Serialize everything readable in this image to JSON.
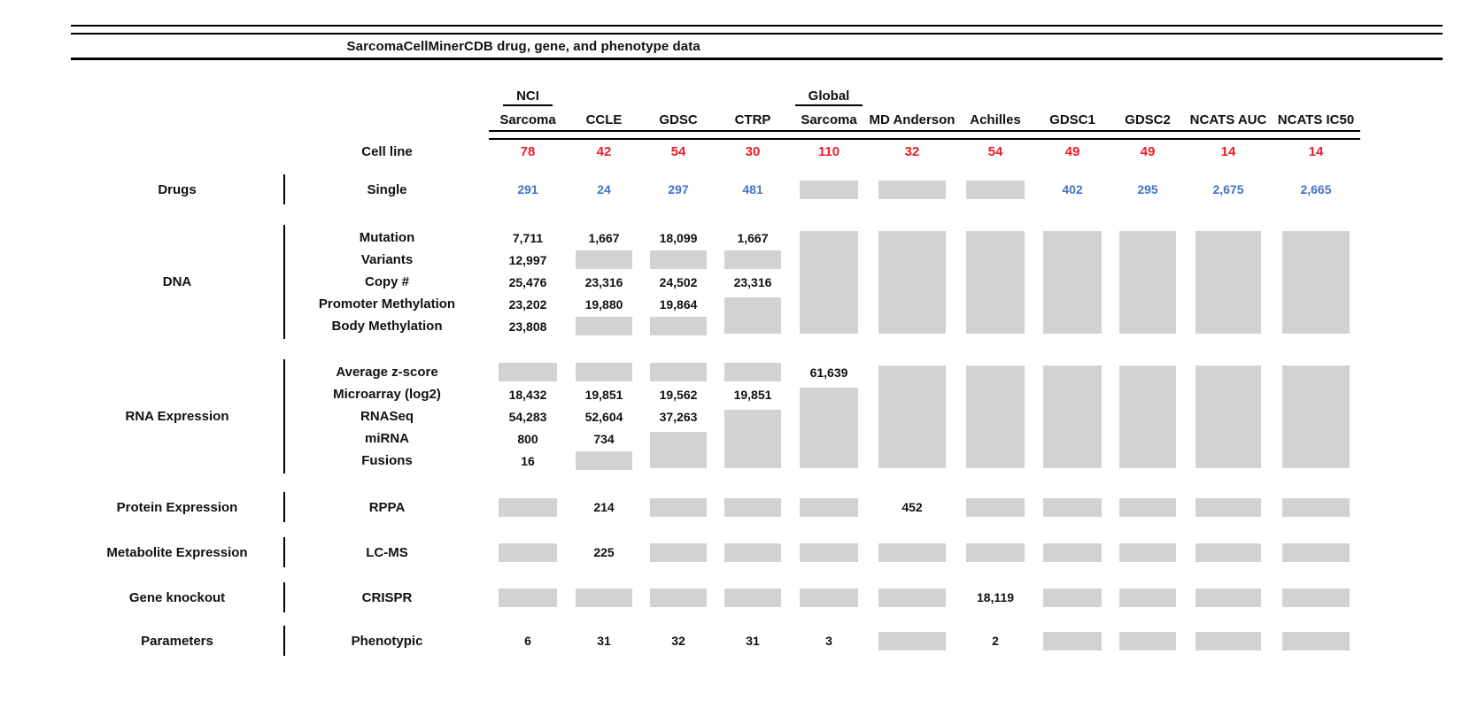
{
  "title": "SarcomaCellMinerCDB drug, gene, and phenotype data",
  "colors": {
    "cell_line_red": "#ee1c25",
    "drug_blue": "#4472c4",
    "empty_box_gray": "#d2d2d2",
    "text_black": "#111111"
  },
  "columns": [
    {
      "id": "nci-sarcoma",
      "label_top": "NCI",
      "label": "Sarcoma"
    },
    {
      "id": "ccle",
      "label_top": "",
      "label": "CCLE"
    },
    {
      "id": "gdsc",
      "label_top": "",
      "label": "GDSC"
    },
    {
      "id": "ctrp",
      "label_top": "",
      "label": "CTRP"
    },
    {
      "id": "global-sarcoma",
      "label_top": "Global",
      "label": "Sarcoma"
    },
    {
      "id": "md-anderson",
      "label_top": "",
      "label": "MD Anderson"
    },
    {
      "id": "achilles",
      "label_top": "",
      "label": "Achilles"
    },
    {
      "id": "gdsc1",
      "label_top": "",
      "label": "GDSC1"
    },
    {
      "id": "gdsc2",
      "label_top": "",
      "label": "GDSC2"
    },
    {
      "id": "ncats-auc",
      "label_top": "",
      "label": "NCATS AUC"
    },
    {
      "id": "ncats-ic50",
      "label_top": "",
      "label": "NCATS IC50"
    }
  ],
  "cell_line_row": {
    "label": "Cell line",
    "values": [
      "78",
      "42",
      "54",
      "30",
      "110",
      "32",
      "54",
      "49",
      "49",
      "14",
      "14"
    ]
  },
  "sections": [
    {
      "category": "Drugs",
      "rows": [
        {
          "label": "Single",
          "color": "blue",
          "cells": [
            "291",
            "24",
            "297",
            "481",
            {
              "box": 1
            },
            {
              "box": 1
            },
            {
              "box": 1
            },
            "402",
            "295",
            "2,675",
            "2,665"
          ]
        }
      ]
    },
    {
      "category": "DNA",
      "rows": [
        {
          "label": "Mutation",
          "cells": [
            "7,711",
            "1,667",
            "18,099",
            "1,667",
            {
              "box": 5
            },
            {
              "box": 5
            },
            {
              "box": 5
            },
            {
              "box": 5
            },
            {
              "box": 5
            },
            {
              "box": 5
            },
            {
              "box": 5
            }
          ]
        },
        {
          "label": "Variants",
          "cells": [
            "12,997",
            {
              "box": 1
            },
            {
              "box": 1
            },
            {
              "box": 1
            },
            null,
            null,
            null,
            null,
            null,
            null,
            null
          ]
        },
        {
          "label": "Copy #",
          "cells": [
            "25,476",
            "23,316",
            "24,502",
            "23,316",
            null,
            null,
            null,
            null,
            null,
            null,
            null
          ]
        },
        {
          "label": "Promoter Methylation",
          "cells": [
            "23,202",
            "19,880",
            "19,864",
            {
              "box": 2
            },
            null,
            null,
            null,
            null,
            null,
            null,
            null
          ]
        },
        {
          "label": "Body Methylation",
          "cells": [
            "23,808",
            {
              "box": 1
            },
            {
              "box": 1
            },
            null,
            null,
            null,
            null,
            null,
            null,
            null,
            null
          ]
        }
      ]
    },
    {
      "category": "RNA Expression",
      "rows": [
        {
          "label": "Average z-score",
          "cells": [
            {
              "box": 1
            },
            {
              "box": 1
            },
            {
              "box": 1
            },
            {
              "box": 1
            },
            "61,639",
            {
              "box": 5
            },
            {
              "box": 5
            },
            {
              "box": 5
            },
            {
              "box": 5
            },
            {
              "box": 5
            },
            {
              "box": 5
            }
          ]
        },
        {
          "label": "Microarray (log2)",
          "cells": [
            "18,432",
            "19,851",
            "19,562",
            "19,851",
            {
              "box": 4
            },
            null,
            null,
            null,
            null,
            null,
            null
          ]
        },
        {
          "label": "RNASeq",
          "cells": [
            "54,283",
            "52,604",
            "37,263",
            {
              "box": 3
            },
            null,
            null,
            null,
            null,
            null,
            null,
            null
          ]
        },
        {
          "label": "miRNA",
          "cells": [
            "800",
            "734",
            {
              "box": 2
            },
            null,
            null,
            null,
            null,
            null,
            null,
            null,
            null
          ]
        },
        {
          "label": "Fusions",
          "cells": [
            "16",
            {
              "box": 1
            },
            null,
            null,
            null,
            null,
            null,
            null,
            null,
            null,
            null
          ]
        }
      ]
    },
    {
      "category": "Protein Expression",
      "rows": [
        {
          "label": "RPPA",
          "cells": [
            {
              "box": 1
            },
            "214",
            {
              "box": 1
            },
            {
              "box": 1
            },
            {
              "box": 1
            },
            "452",
            {
              "box": 1
            },
            {
              "box": 1
            },
            {
              "box": 1
            },
            {
              "box": 1
            },
            {
              "box": 1
            }
          ]
        }
      ]
    },
    {
      "category": "Metabolite Expression",
      "rows": [
        {
          "label": "LC-MS",
          "cells": [
            {
              "box": 1
            },
            "225",
            {
              "box": 1
            },
            {
              "box": 1
            },
            {
              "box": 1
            },
            {
              "box": 1
            },
            {
              "box": 1
            },
            {
              "box": 1
            },
            {
              "box": 1
            },
            {
              "box": 1
            },
            {
              "box": 1
            }
          ]
        }
      ]
    },
    {
      "category": "Gene knockout",
      "rows": [
        {
          "label": "CRISPR",
          "cells": [
            {
              "box": 1
            },
            {
              "box": 1
            },
            {
              "box": 1
            },
            {
              "box": 1
            },
            {
              "box": 1
            },
            {
              "box": 1
            },
            "18,119",
            {
              "box": 1
            },
            {
              "box": 1
            },
            {
              "box": 1
            },
            {
              "box": 1
            }
          ]
        }
      ]
    },
    {
      "category": "Parameters",
      "rows": [
        {
          "label": "Phenotypic",
          "cells": [
            "6",
            "31",
            "32",
            "31",
            "3",
            {
              "box": 1
            },
            "2",
            {
              "box": 1
            },
            {
              "box": 1
            },
            {
              "box": 1
            },
            {
              "box": 1
            }
          ]
        }
      ]
    }
  ]
}
